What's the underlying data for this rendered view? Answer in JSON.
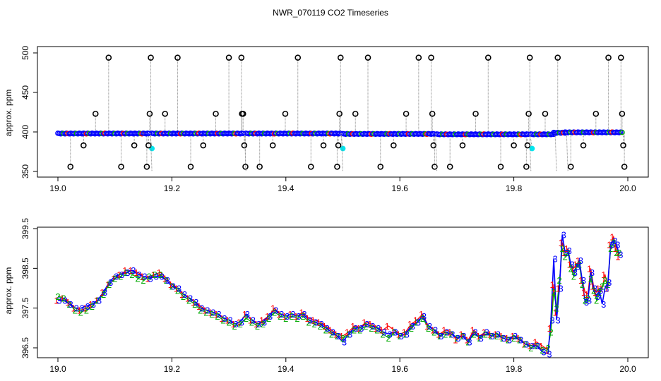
{
  "title": "NWR_070119  CO2 Timeseries",
  "chart_data": [
    {
      "type": "scatter",
      "panel": "top",
      "ylabel": "approx. ppm",
      "xlim": [
        19.0,
        20.0
      ],
      "ylim": [
        340,
        502
      ],
      "x_ticks": [
        "19.0",
        "19.2",
        "19.4",
        "19.6",
        "19.8",
        "20.0"
      ],
      "y_ticks": [
        "350",
        "400",
        "450",
        "500"
      ],
      "colors": {
        "baseline": "#0000ff",
        "outlier": "#000000",
        "highlight": "#00e5ee",
        "stem": "#888888",
        "accent1": "#ff0000",
        "accent2": "#00aa00"
      },
      "baseline_segments": [
        {
          "x0": 19.0,
          "x1": 19.16,
          "y": 398
        },
        {
          "x0": 19.165,
          "x1": 19.325,
          "y": 398
        },
        {
          "x0": 19.33,
          "x1": 19.495,
          "y": 398
        },
        {
          "x0": 19.5,
          "x1": 19.66,
          "y": 397.5
        },
        {
          "x0": 19.665,
          "x1": 19.825,
          "y": 397
        },
        {
          "x0": 19.83,
          "x1": 19.87,
          "y": 397
        },
        {
          "x0": 19.87,
          "x1": 19.89,
          "y": 399
        },
        {
          "x0": 19.89,
          "x1": 19.99,
          "y": 399.5
        }
      ],
      "outliers": [
        {
          "x": 19.022,
          "y": 356
        },
        {
          "x": 19.045,
          "y": 383
        },
        {
          "x": 19.066,
          "y": 423
        },
        {
          "x": 19.089,
          "y": 494
        },
        {
          "x": 19.111,
          "y": 356
        },
        {
          "x": 19.134,
          "y": 383
        },
        {
          "x": 19.156,
          "y": 356
        },
        {
          "x": 19.159,
          "y": 383
        },
        {
          "x": 19.161,
          "y": 423
        },
        {
          "x": 19.163,
          "y": 494
        },
        {
          "x": 19.188,
          "y": 423
        },
        {
          "x": 19.21,
          "y": 494
        },
        {
          "x": 19.233,
          "y": 356
        },
        {
          "x": 19.255,
          "y": 383
        },
        {
          "x": 19.277,
          "y": 423
        },
        {
          "x": 19.3,
          "y": 494
        },
        {
          "x": 19.322,
          "y": 494
        },
        {
          "x": 19.323,
          "y": 423
        },
        {
          "x": 19.325,
          "y": 423
        },
        {
          "x": 19.327,
          "y": 383
        },
        {
          "x": 19.329,
          "y": 356
        },
        {
          "x": 19.354,
          "y": 356
        },
        {
          "x": 19.377,
          "y": 383
        },
        {
          "x": 19.399,
          "y": 423
        },
        {
          "x": 19.421,
          "y": 494
        },
        {
          "x": 19.444,
          "y": 356
        },
        {
          "x": 19.466,
          "y": 383
        },
        {
          "x": 19.49,
          "y": 356
        },
        {
          "x": 19.492,
          "y": 383
        },
        {
          "x": 19.494,
          "y": 423
        },
        {
          "x": 19.496,
          "y": 494
        },
        {
          "x": 19.522,
          "y": 423
        },
        {
          "x": 19.544,
          "y": 494
        },
        {
          "x": 19.566,
          "y": 356
        },
        {
          "x": 19.589,
          "y": 383
        },
        {
          "x": 19.611,
          "y": 423
        },
        {
          "x": 19.633,
          "y": 494
        },
        {
          "x": 19.655,
          "y": 494
        },
        {
          "x": 19.657,
          "y": 423
        },
        {
          "x": 19.659,
          "y": 383
        },
        {
          "x": 19.661,
          "y": 356
        },
        {
          "x": 19.688,
          "y": 356
        },
        {
          "x": 19.71,
          "y": 383
        },
        {
          "x": 19.733,
          "y": 423
        },
        {
          "x": 19.755,
          "y": 494
        },
        {
          "x": 19.777,
          "y": 356
        },
        {
          "x": 19.8,
          "y": 383
        },
        {
          "x": 19.822,
          "y": 356
        },
        {
          "x": 19.824,
          "y": 383
        },
        {
          "x": 19.826,
          "y": 423
        },
        {
          "x": 19.828,
          "y": 494
        },
        {
          "x": 19.855,
          "y": 423
        },
        {
          "x": 19.877,
          "y": 494
        },
        {
          "x": 19.9,
          "y": 356
        },
        {
          "x": 19.922,
          "y": 383
        },
        {
          "x": 19.944,
          "y": 423
        },
        {
          "x": 19.966,
          "y": 494
        },
        {
          "x": 19.988,
          "y": 494
        },
        {
          "x": 19.99,
          "y": 423
        },
        {
          "x": 19.992,
          "y": 383
        },
        {
          "x": 19.994,
          "y": 356
        }
      ],
      "highlights": [
        {
          "x": 19.165,
          "y": 379
        },
        {
          "x": 19.5,
          "y": 379
        },
        {
          "x": 19.832,
          "y": 379
        }
      ]
    },
    {
      "type": "line",
      "panel": "bottom",
      "ylabel": "approx. ppm",
      "xlim": [
        19.0,
        20.0
      ],
      "ylim": [
        396.3,
        399.5
      ],
      "x_ticks": [
        "19.0",
        "19.2",
        "19.4",
        "19.6",
        "19.8",
        "20.0"
      ],
      "y_ticks": [
        "396.5",
        "397.5",
        "398.5",
        "399.5"
      ],
      "marker_labels": [
        "1",
        "2",
        "3"
      ],
      "series_colors": [
        "#ff0000",
        "#00aa00",
        "#0000ff"
      ],
      "x": [
        19.0,
        19.01,
        19.02,
        19.03,
        19.04,
        19.05,
        19.06,
        19.07,
        19.08,
        19.09,
        19.1,
        19.11,
        19.12,
        19.13,
        19.14,
        19.15,
        19.16,
        19.17,
        19.18,
        19.19,
        19.2,
        19.21,
        19.22,
        19.23,
        19.24,
        19.25,
        19.26,
        19.27,
        19.28,
        19.29,
        19.3,
        19.31,
        19.32,
        19.33,
        19.34,
        19.35,
        19.36,
        19.37,
        19.38,
        19.39,
        19.4,
        19.41,
        19.42,
        19.43,
        19.44,
        19.45,
        19.46,
        19.47,
        19.48,
        19.49,
        19.5,
        19.51,
        19.52,
        19.53,
        19.54,
        19.55,
        19.56,
        19.57,
        19.58,
        19.59,
        19.6,
        19.61,
        19.62,
        19.63,
        19.64,
        19.65,
        19.66,
        19.67,
        19.68,
        19.69,
        19.7,
        19.71,
        19.72,
        19.73,
        19.74,
        19.75,
        19.76,
        19.77,
        19.78,
        19.79,
        19.8,
        19.81,
        19.82,
        19.83,
        19.84,
        19.85,
        19.86,
        19.865,
        19.87,
        19.875,
        19.88,
        19.885,
        19.89,
        19.895,
        19.9,
        19.905,
        19.91,
        19.915,
        19.92,
        19.925,
        19.93,
        19.935,
        19.94,
        19.945,
        19.95,
        19.955,
        19.96,
        19.965,
        19.97,
        19.975,
        19.98,
        19.985
      ],
      "series": [
        {
          "name": "1",
          "values": [
            397.7,
            397.75,
            397.65,
            397.5,
            397.45,
            397.5,
            397.6,
            397.7,
            397.9,
            398.1,
            398.25,
            398.35,
            398.45,
            398.45,
            398.4,
            398.3,
            398.25,
            398.35,
            398.4,
            398.25,
            398.1,
            398.0,
            397.85,
            397.75,
            397.65,
            397.55,
            397.45,
            397.4,
            397.35,
            397.25,
            397.2,
            397.1,
            397.15,
            397.35,
            397.2,
            397.1,
            397.2,
            397.3,
            397.5,
            397.35,
            397.3,
            397.35,
            397.3,
            397.4,
            397.25,
            397.2,
            397.15,
            397.05,
            396.95,
            396.85,
            396.8,
            396.9,
            397.05,
            397.0,
            397.15,
            397.1,
            397.0,
            396.95,
            397.05,
            396.95,
            396.85,
            396.9,
            397.1,
            397.2,
            397.35,
            397.05,
            396.95,
            396.85,
            396.95,
            396.9,
            396.7,
            396.85,
            396.7,
            396.95,
            396.8,
            396.9,
            396.85,
            396.85,
            396.8,
            396.75,
            396.8,
            396.75,
            396.6,
            396.55,
            396.65,
            396.55,
            396.45,
            397.0,
            398.1,
            397.4,
            398.0,
            399.15,
            398.9,
            399.0,
            398.6,
            398.5,
            398.6,
            398.7,
            398.2,
            397.9,
            397.85,
            398.5,
            398.05,
            397.9,
            398.0,
            398.0,
            398.35,
            398.0,
            399.1,
            399.3,
            399.0,
            398.8
          ]
        },
        {
          "name": "2",
          "values": [
            397.8,
            397.75,
            397.6,
            397.45,
            397.4,
            397.45,
            397.55,
            397.7,
            397.85,
            398.1,
            398.25,
            398.3,
            398.4,
            398.35,
            398.25,
            398.2,
            398.3,
            398.35,
            398.35,
            398.2,
            398.05,
            397.95,
            397.8,
            397.7,
            397.6,
            397.45,
            397.4,
            397.35,
            397.3,
            397.2,
            397.15,
            397.05,
            397.1,
            397.25,
            397.15,
            397.05,
            397.1,
            397.25,
            397.4,
            397.3,
            397.25,
            397.3,
            397.25,
            397.3,
            397.15,
            397.1,
            397.05,
            396.95,
            396.85,
            396.8,
            396.75,
            396.85,
            396.95,
            396.95,
            397.05,
            397.0,
            396.95,
            396.85,
            396.75,
            396.9,
            396.8,
            396.85,
            397.0,
            397.15,
            397.25,
            397.0,
            396.9,
            396.8,
            396.85,
            396.85,
            396.75,
            396.8,
            396.65,
            396.85,
            396.75,
            396.85,
            396.8,
            396.8,
            396.75,
            396.7,
            396.75,
            396.7,
            396.6,
            396.5,
            396.55,
            396.45,
            396.5,
            396.9,
            397.9,
            397.5,
            398.2,
            399.0,
            398.8,
            398.9,
            398.5,
            398.3,
            398.55,
            398.6,
            398.1,
            397.7,
            397.75,
            398.25,
            397.95,
            397.7,
            397.9,
            398.05,
            398.2,
            398.1,
            399.0,
            399.15,
            398.9,
            398.9
          ]
        },
        {
          "name": "3",
          "values": [
            397.7,
            397.7,
            397.6,
            397.5,
            397.5,
            397.55,
            397.6,
            397.7,
            397.9,
            398.15,
            398.3,
            398.35,
            398.4,
            398.45,
            398.35,
            398.3,
            398.25,
            398.3,
            398.3,
            398.2,
            398.05,
            398.0,
            397.85,
            397.75,
            397.65,
            397.5,
            397.45,
            397.4,
            397.35,
            397.25,
            397.2,
            397.1,
            397.15,
            397.35,
            397.2,
            397.1,
            397.15,
            397.3,
            397.45,
            397.35,
            397.3,
            397.35,
            397.3,
            397.35,
            397.2,
            397.15,
            397.1,
            397.0,
            396.9,
            396.8,
            396.65,
            396.85,
            397.0,
            397.0,
            397.1,
            397.05,
            397.0,
            396.9,
            396.85,
            396.9,
            396.8,
            396.85,
            397.05,
            397.15,
            397.3,
            397.05,
            396.95,
            396.8,
            396.9,
            396.85,
            396.75,
            396.8,
            396.65,
            396.9,
            396.75,
            396.9,
            396.8,
            396.85,
            396.75,
            396.7,
            396.8,
            396.7,
            396.6,
            396.55,
            396.55,
            396.4,
            396.35,
            397.2,
            398.75,
            397.2,
            398.0,
            399.35,
            398.9,
            398.95,
            398.6,
            398.4,
            398.55,
            398.7,
            398.2,
            397.65,
            397.7,
            398.4,
            398.0,
            397.8,
            397.95,
            397.6,
            398.0,
            398.15,
            399.1,
            399.2,
            399.1,
            398.85
          ]
        }
      ]
    }
  ]
}
